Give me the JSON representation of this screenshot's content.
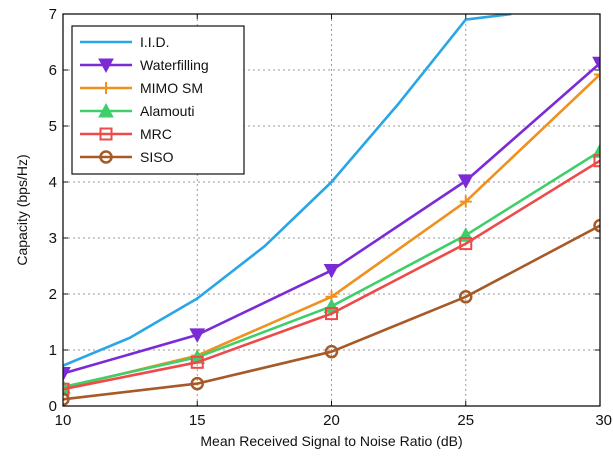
{
  "chart_data": {
    "type": "line",
    "xlabel": "Mean Received Signal to Noise Ratio (dB)",
    "ylabel": "Capacity (bps/Hz)",
    "xlim": [
      10,
      30
    ],
    "ylim": [
      0,
      7
    ],
    "xticks": [
      10,
      15,
      20,
      25,
      30
    ],
    "yticks": [
      0,
      1,
      2,
      3,
      4,
      5,
      6,
      7
    ],
    "grid": true,
    "legend_position": "top-left",
    "series": [
      {
        "name": "I.I.D.",
        "color": "#2aa6e6",
        "marker": "none",
        "x": [
          10,
          12.5,
          15,
          17.5,
          20,
          22.5,
          25,
          26.7
        ],
        "y": [
          0.72,
          1.22,
          1.92,
          2.85,
          4.0,
          5.4,
          6.9,
          7.0
        ]
      },
      {
        "name": "Waterfilling",
        "color": "#7b2ad6",
        "marker": "triangle-down",
        "x": [
          10,
          15,
          20,
          25,
          30
        ],
        "y": [
          0.58,
          1.27,
          2.42,
          4.02,
          6.12
        ]
      },
      {
        "name": "MIMO SM",
        "color": "#f0901e",
        "marker": "plus",
        "x": [
          10,
          15,
          20,
          25,
          30
        ],
        "y": [
          0.32,
          0.9,
          1.95,
          3.65,
          5.92
        ]
      },
      {
        "name": "Alamouti",
        "color": "#3fcf6a",
        "marker": "triangle-up",
        "x": [
          10,
          15,
          20,
          25,
          30
        ],
        "y": [
          0.34,
          0.87,
          1.78,
          3.05,
          4.55
        ]
      },
      {
        "name": "MRC",
        "color": "#ee4a4a",
        "marker": "square",
        "x": [
          10,
          15,
          20,
          25,
          30
        ],
        "y": [
          0.3,
          0.78,
          1.65,
          2.9,
          4.38
        ]
      },
      {
        "name": "SISO",
        "color": "#a65a28",
        "marker": "circle",
        "x": [
          10,
          15,
          20,
          25,
          30
        ],
        "y": [
          0.12,
          0.4,
          0.97,
          1.95,
          3.22
        ]
      }
    ]
  }
}
